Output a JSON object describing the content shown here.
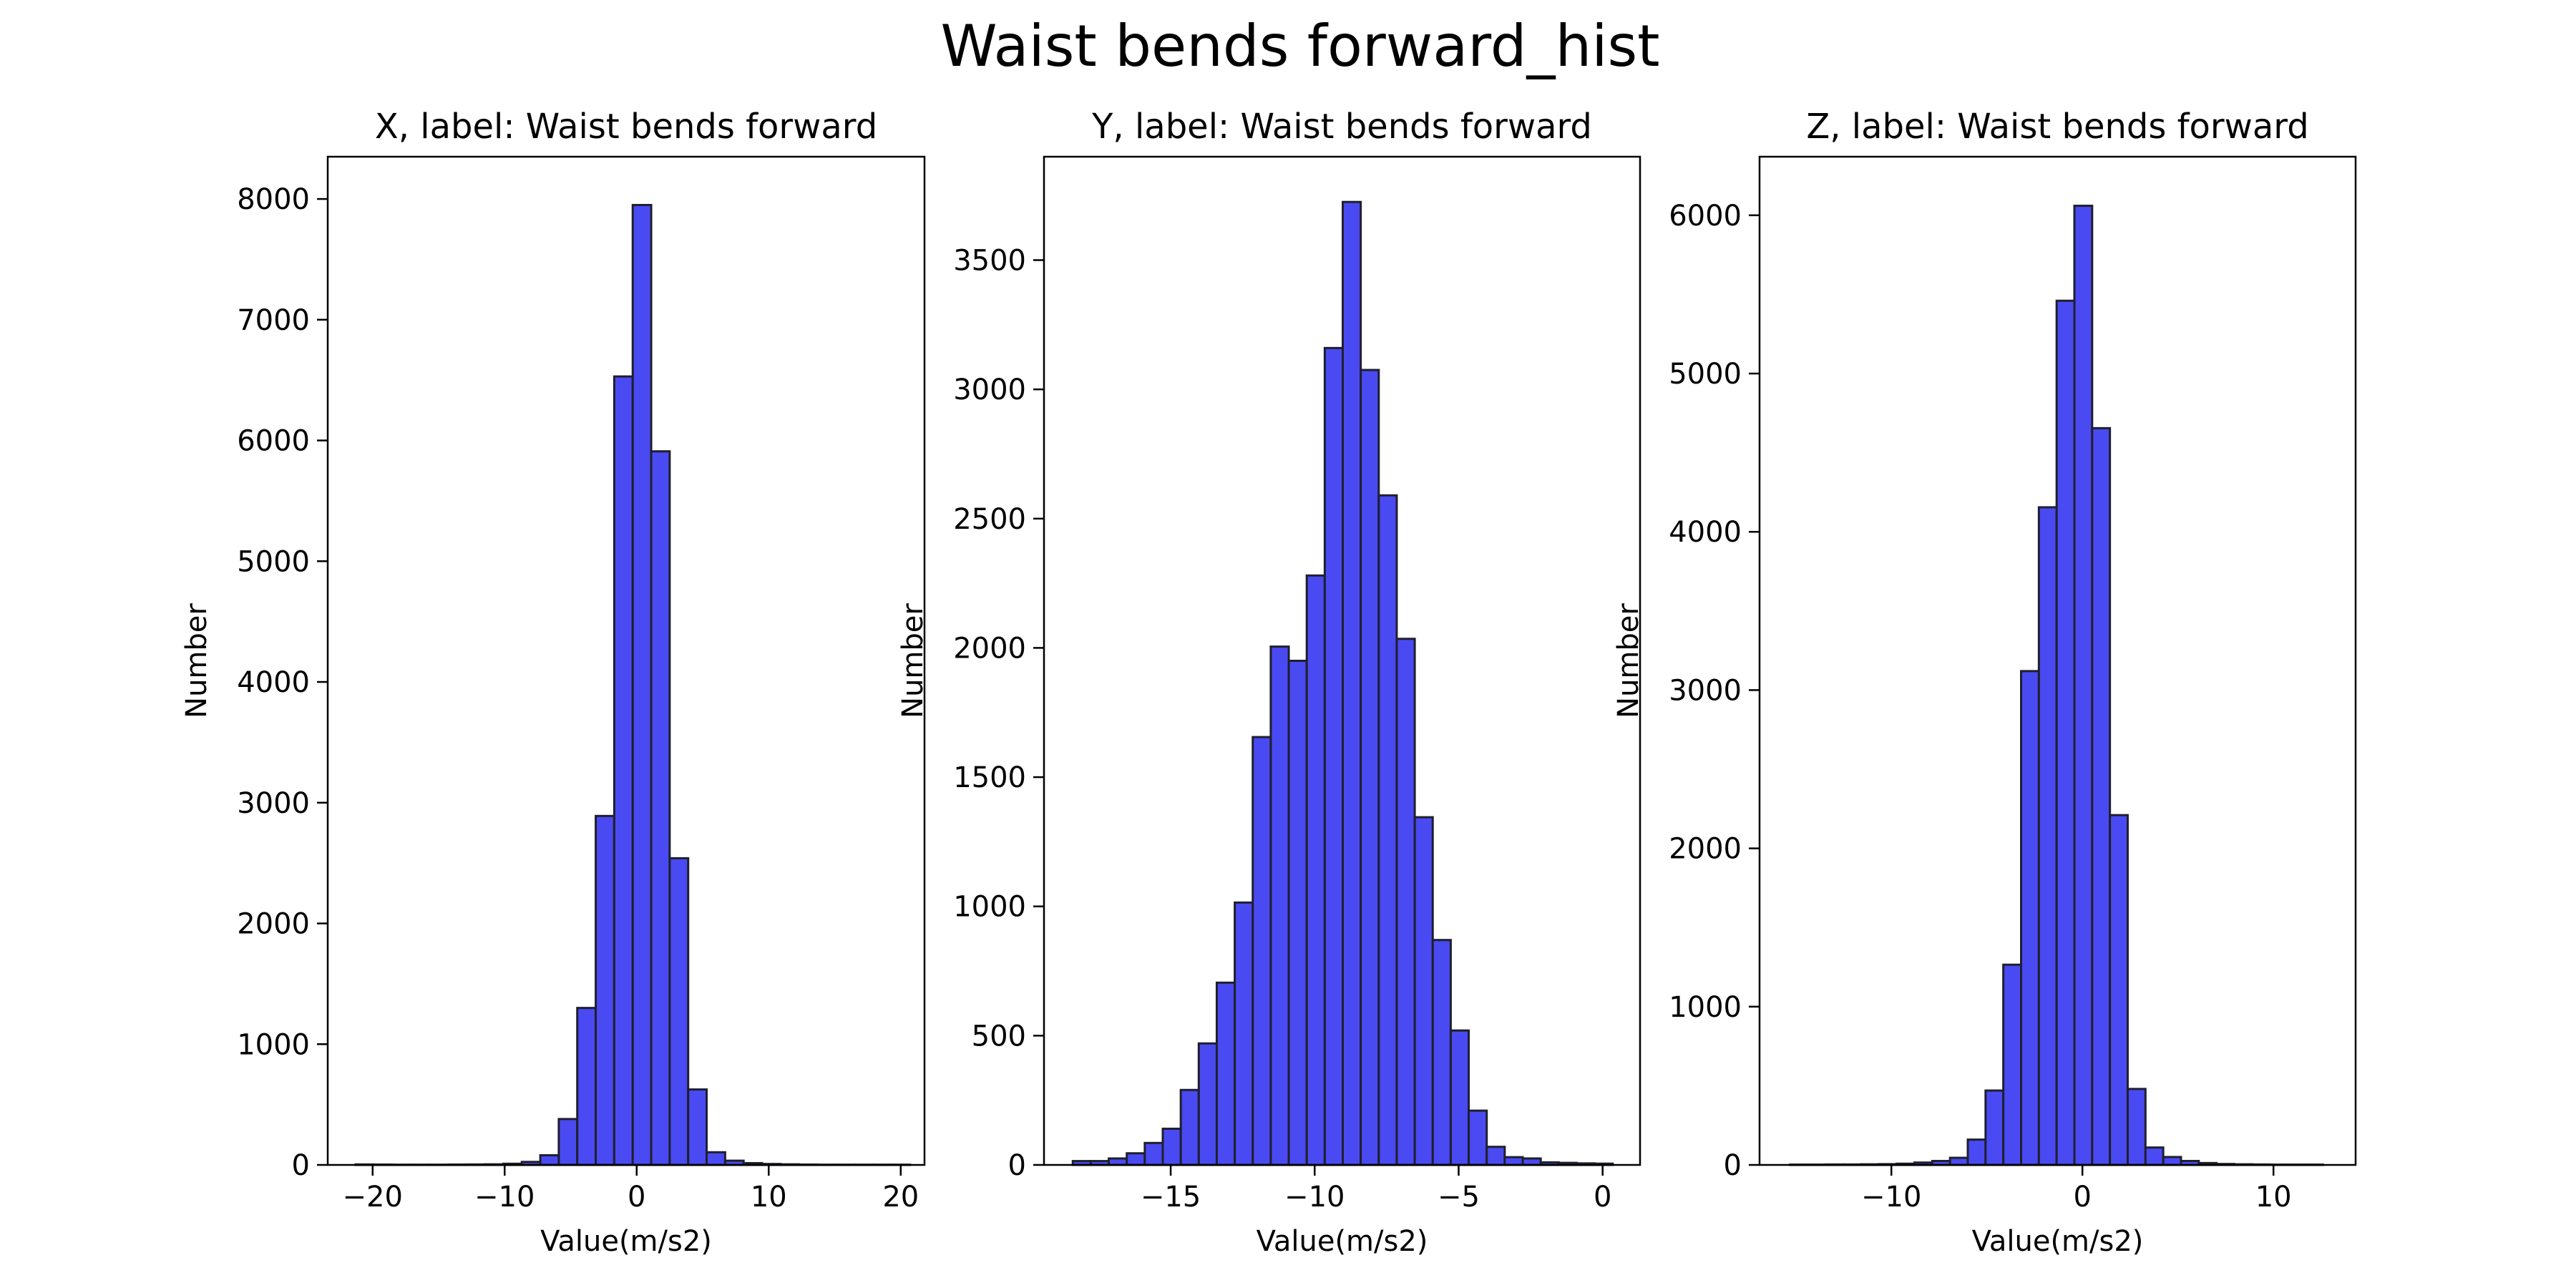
{
  "title": "Waist bends forward_hist",
  "colors": {
    "bar_fill": "#4a4af2",
    "bar_edge": "#1f1f2e",
    "axis": "#000000"
  },
  "chart_data": [
    {
      "type": "bar",
      "title": "X, label: Waist bends forward",
      "xlabel": "Value(m/s2)",
      "ylabel": "Number",
      "xlim": [
        -23.4,
        21.8
      ],
      "ylim": [
        0,
        8350
      ],
      "xticks": [
        -20,
        -10,
        0,
        10,
        20
      ],
      "yticks": [
        0,
        1000,
        2000,
        3000,
        4000,
        5000,
        6000,
        7000,
        8000
      ],
      "bins": {
        "start": -21.3,
        "width": 1.4,
        "values": [
          4,
          3,
          2,
          2,
          2,
          3,
          4,
          5,
          10,
          25,
          80,
          380,
          1300,
          2890,
          6530,
          7950,
          5910,
          2540,
          625,
          105,
          35,
          15,
          8,
          5,
          3,
          2,
          2,
          2,
          2,
          2
        ]
      }
    },
    {
      "type": "bar",
      "title": "Y, label: Waist bends forward",
      "xlabel": "Value(m/s2)",
      "ylabel": "Number",
      "xlim": [
        -19.4,
        1.3
      ],
      "ylim": [
        0,
        3900
      ],
      "xticks": [
        -15,
        -10,
        -5,
        0
      ],
      "yticks": [
        0,
        500,
        1000,
        1500,
        2000,
        2500,
        3000,
        3500
      ],
      "bins": {
        "start": -18.4,
        "width": 0.625,
        "values": [
          15,
          15,
          25,
          45,
          85,
          140,
          290,
          470,
          705,
          1015,
          1655,
          2005,
          1950,
          2280,
          3160,
          3725,
          3075,
          2590,
          2035,
          1345,
          870,
          520,
          210,
          70,
          30,
          25,
          10,
          8,
          6,
          5
        ]
      }
    },
    {
      "type": "bar",
      "title": "Z, label: Waist bends forward",
      "xlabel": "Value(m/s2)",
      "ylabel": "Number",
      "xlim": [
        -16.9,
        14.3
      ],
      "ylim": [
        0,
        6370
      ],
      "xticks": [
        -10,
        0,
        10
      ],
      "yticks": [
        0,
        1000,
        2000,
        3000,
        4000,
        5000,
        6000
      ],
      "bins": {
        "start": -15.3,
        "width": 0.93,
        "values": [
          2,
          2,
          3,
          3,
          4,
          5,
          8,
          15,
          25,
          45,
          160,
          470,
          1265,
          3120,
          4155,
          5460,
          6060,
          4655,
          2210,
          480,
          110,
          50,
          25,
          12,
          6,
          4,
          3,
          2,
          2,
          2
        ]
      }
    }
  ]
}
